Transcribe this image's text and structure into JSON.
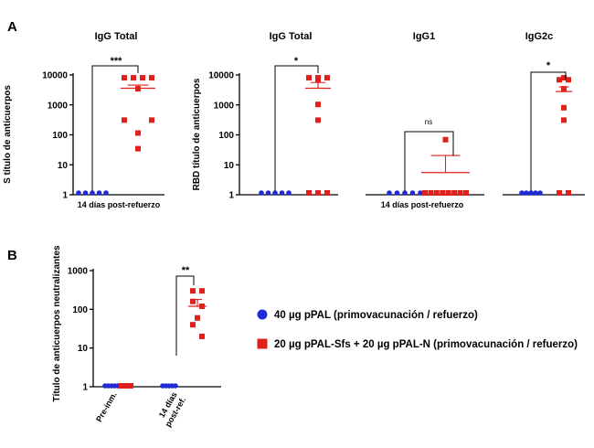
{
  "panel_labels": {
    "a": "A",
    "b": "B"
  },
  "colors": {
    "blue": "#1f2bd6",
    "red": "#e0201b",
    "axis": "#000000"
  },
  "legend": [
    {
      "label": "40 µg pPAL (primovacunación / refuerzo)",
      "color": "#1f2bd6",
      "marker": "circle"
    },
    {
      "label": "20 µg pPAL-Sfs + 20 µg pPAL-N (primovacunación / refuerzo)",
      "color": "#e0201b",
      "marker": "square"
    }
  ],
  "chart_data": [
    {
      "type": "scatter",
      "title": "IgG Total",
      "ylabel": "S título de anticuerpos",
      "xlabel": "14 días post-refuerzo",
      "yscale": "log",
      "ylim": [
        1,
        10000
      ],
      "yticks": [
        "1",
        "10",
        "100",
        "1000",
        "10000"
      ],
      "series": [
        {
          "color": "#1f2bd6",
          "marker": "circle",
          "values": [
            1,
            1,
            1,
            1,
            1
          ]
        },
        {
          "color": "#e0201b",
          "marker": "square",
          "values": [
            7000,
            7000,
            7000,
            7000,
            3000,
            270,
            270,
            100,
            30
          ],
          "mean": 3600,
          "error": 1000
        }
      ],
      "significance": "***"
    },
    {
      "type": "scatter",
      "title": "IgG Total",
      "ylabel": "RBD título de anticuerpos",
      "yscale": "log",
      "ylim": [
        1,
        10000
      ],
      "yticks": [
        "1",
        "10",
        "100",
        "1000",
        "10000"
      ],
      "series": [
        {
          "color": "#1f2bd6",
          "marker": "circle",
          "values": [
            1,
            1,
            1,
            1,
            1
          ]
        },
        {
          "color": "#e0201b",
          "marker": "square",
          "values": [
            7000,
            7000,
            7000,
            6000,
            900,
            270,
            1,
            1,
            1
          ],
          "mean": 3600,
          "error": 2000
        }
      ],
      "significance": "*"
    },
    {
      "type": "scatter",
      "title": "IgG1",
      "xlabel": "14 días post-refuerzo",
      "yscale": "log",
      "ylim": [
        1,
        10000
      ],
      "series": [
        {
          "color": "#1f2bd6",
          "marker": "circle",
          "values": [
            1,
            1,
            1,
            1,
            1
          ]
        },
        {
          "color": "#e0201b",
          "marker": "square",
          "values": [
            60,
            1,
            1,
            1,
            1,
            1,
            1,
            1,
            1
          ],
          "mean": 5.5,
          "error": 15
        }
      ],
      "significance": "ns"
    },
    {
      "type": "scatter",
      "title": "IgG2c",
      "yscale": "log",
      "ylim": [
        1,
        10000
      ],
      "series": [
        {
          "color": "#1f2bd6",
          "marker": "circle",
          "values": [
            1,
            1,
            1,
            1,
            1
          ]
        },
        {
          "color": "#e0201b",
          "marker": "square",
          "values": [
            7000,
            6000,
            6000,
            3000,
            700,
            270,
            1,
            1
          ],
          "mean": 2800,
          "error": 1200
        }
      ],
      "significance": "*"
    },
    {
      "type": "scatter",
      "ylabel": "Título de anticuerpos neutralizantes",
      "yscale": "log",
      "ylim": [
        1,
        1000
      ],
      "yticks": [
        "1",
        "10",
        "100",
        "1000"
      ],
      "categories": [
        "Pre-inm.",
        "14 días post-ref."
      ],
      "series": [
        {
          "color": "#1f2bd6",
          "marker": "circle",
          "values": [
            [
              1,
              1,
              1,
              1,
              1
            ],
            [
              1,
              1,
              1,
              1,
              1
            ]
          ]
        },
        {
          "color": "#e0201b",
          "marker": "square",
          "values": [
            [
              1,
              1,
              1,
              1,
              1
            ],
            [
              300,
              300,
              160,
              120,
              60,
              40,
              20
            ]
          ],
          "mean": [
            1,
            120
          ],
          "error": [
            0,
            60
          ]
        }
      ],
      "significance": "**"
    }
  ]
}
